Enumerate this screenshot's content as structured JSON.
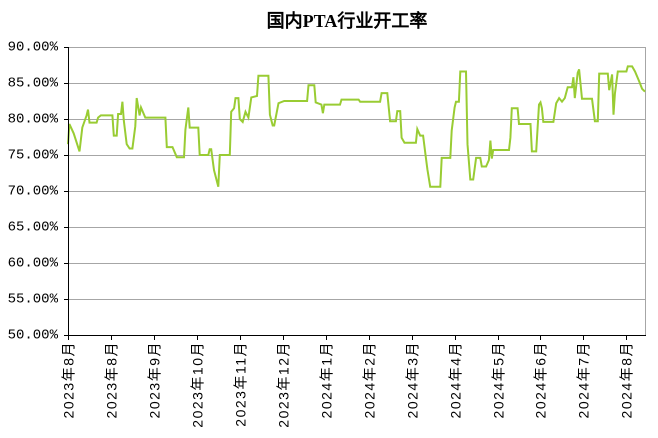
{
  "chart_data": {
    "type": "line",
    "title": "国内PTA行业开工率",
    "xlabel": "",
    "ylabel": "",
    "xlim": [
      "2023-08-01",
      "2024-09-07"
    ],
    "ylim": [
      50,
      90
    ],
    "grid": "horizontal",
    "legend": "none",
    "xticks": [
      "2023年8月",
      "2023年8月",
      "2023年9月",
      "2023年10月",
      "2023年11月",
      "2023年12月",
      "2024年1月",
      "2024年2月",
      "2024年3月",
      "2024年4月",
      "2024年5月",
      "2024年6月",
      "2024年7月",
      "2024年8月"
    ],
    "yticks": [
      90,
      85,
      80,
      75,
      70,
      65,
      60,
      55,
      50
    ],
    "ytick_labels": [
      "90.00%",
      "85.00%",
      "80.00%",
      "75.00%",
      "70.00%",
      "65.00%",
      "60.00%",
      "55.00%",
      "50.00%"
    ],
    "series": [
      {
        "color": "#99cc33",
        "x": [
          "2023-08-01",
          "2023-08-02",
          "2023-08-05",
          "2023-08-09",
          "2023-08-11",
          "2023-08-14",
          "2023-08-15",
          "2023-08-16",
          "2023-08-21",
          "2023-08-22",
          "2023-08-24",
          "2023-09-01",
          "2023-09-02",
          "2023-09-04",
          "2023-09-05",
          "2023-09-07",
          "2023-09-08",
          "2023-09-09",
          "2023-09-11",
          "2023-09-13",
          "2023-09-15",
          "2023-09-17",
          "2023-09-18",
          "2023-09-20",
          "2023-09-21",
          "2023-09-24",
          "2023-10-08",
          "2023-10-09",
          "2023-10-13",
          "2023-10-16",
          "2023-10-21",
          "2023-10-22",
          "2023-10-24",
          "2023-10-25",
          "2023-10-31",
          "2023-11-01",
          "2023-11-07",
          "2023-11-08",
          "2023-11-09",
          "2023-11-11",
          "2023-11-14",
          "2023-11-15",
          "2023-11-22",
          "2023-11-23",
          "2023-11-25",
          "2023-11-26",
          "2023-11-28",
          "2023-11-29",
          "2023-12-01",
          "2023-12-03",
          "2023-12-05",
          "2023-12-07",
          "2023-12-11",
          "2023-12-12",
          "2023-12-19",
          "2023-12-20",
          "2023-12-22",
          "2023-12-23",
          "2023-12-26",
          "2023-12-30",
          "2024-01-15",
          "2024-01-16",
          "2024-01-20",
          "2024-01-21",
          "2024-01-25",
          "2024-01-26",
          "2024-01-27",
          "2024-02-07",
          "2024-02-08",
          "2024-02-20",
          "2024-02-21",
          "2024-03-06",
          "2024-03-07",
          "2024-03-11",
          "2024-03-13",
          "2024-03-17",
          "2024-03-18",
          "2024-03-20",
          "2024-03-21",
          "2024-03-23",
          "2024-03-31",
          "2024-04-01",
          "2024-04-03",
          "2024-04-05",
          "2024-04-07",
          "2024-04-08",
          "2024-04-10",
          "2024-04-17",
          "2024-04-18",
          "2024-04-24",
          "2024-04-25",
          "2024-04-27",
          "2024-04-28",
          "2024-04-30",
          "2024-05-01",
          "2024-05-05",
          "2024-05-06",
          "2024-05-08",
          "2024-05-10",
          "2024-05-12",
          "2024-05-15",
          "2024-05-16",
          "2024-05-19",
          "2024-05-21",
          "2024-05-22",
          "2024-05-23",
          "2024-05-24",
          "2024-06-04",
          "2024-06-05",
          "2024-06-06",
          "2024-06-10",
          "2024-06-11",
          "2024-06-19",
          "2024-06-20",
          "2024-06-23",
          "2024-06-25",
          "2024-06-26",
          "2024-06-27",
          "2024-06-28",
          "2024-07-05",
          "2024-07-07",
          "2024-07-09",
          "2024-07-11",
          "2024-07-13",
          "2024-07-15",
          "2024-07-18",
          "2024-07-19",
          "2024-07-20",
          "2024-07-22",
          "2024-07-23",
          "2024-07-25",
          "2024-08-01",
          "2024-08-03",
          "2024-08-05",
          "2024-08-06",
          "2024-08-12",
          "2024-08-13",
          "2024-08-15",
          "2024-08-16",
          "2024-08-17",
          "2024-08-19",
          "2024-08-25",
          "2024-08-26",
          "2024-08-29",
          "2024-08-31",
          "2024-09-03",
          "2024-09-05",
          "2024-09-07"
        ],
        "y": [
          76.5,
          79.3,
          78.0,
          75.5,
          78.8,
          80.5,
          81.3,
          79.5,
          79.5,
          80.2,
          80.5,
          80.5,
          77.7,
          77.7,
          80.7,
          80.7,
          82.4,
          79.8,
          76.5,
          75.9,
          75.9,
          79.0,
          82.9,
          80.5,
          81.6,
          80.2,
          80.2,
          76.1,
          76.1,
          74.7,
          74.7,
          78.5,
          81.6,
          78.8,
          78.8,
          75.0,
          75.0,
          75.8,
          75.8,
          72.9,
          70.6,
          75.0,
          75.0,
          81.0,
          81.5,
          82.9,
          82.9,
          80.0,
          79.6,
          81.0,
          80.2,
          83.0,
          83.2,
          86.0,
          86.0,
          80.6,
          79.1,
          79.1,
          82.2,
          82.5,
          82.5,
          84.7,
          84.7,
          82.3,
          82.0,
          80.8,
          82.0,
          82.0,
          82.7,
          82.7,
          82.4,
          82.4,
          83.6,
          83.6,
          79.7,
          79.7,
          81.1,
          81.1,
          77.4,
          76.7,
          76.7,
          78.6,
          77.7,
          77.7,
          74.6,
          73.0,
          70.6,
          70.6,
          74.6,
          74.6,
          78.4,
          81.6,
          82.4,
          82.4,
          86.6,
          86.6,
          76.5,
          71.6,
          71.6,
          74.6,
          74.6,
          73.4,
          73.4,
          74.3,
          77.0,
          74.5,
          75.7,
          75.7,
          77.4,
          81.5,
          81.5,
          79.3,
          79.3,
          75.5,
          75.5,
          82.0,
          82.3,
          81.5,
          79.6,
          79.6,
          82.2,
          82.9,
          82.4,
          82.9,
          84.4,
          84.4,
          85.8,
          82.9,
          86.4,
          86.9,
          82.8,
          82.8,
          79.7,
          79.7,
          86.3,
          86.3,
          84.0,
          86.2,
          80.6,
          83.5,
          86.6,
          86.6,
          87.3,
          87.3,
          86.6,
          85.2,
          84.2,
          83.8
        ]
      }
    ]
  }
}
